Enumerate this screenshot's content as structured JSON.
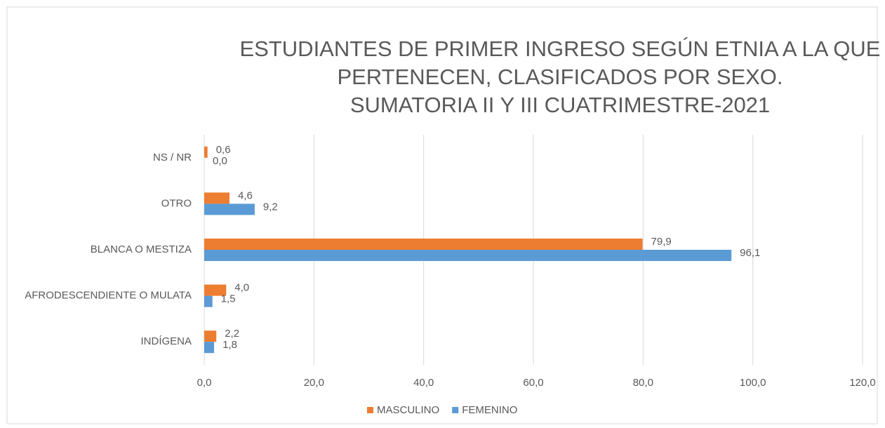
{
  "chart_data": {
    "type": "hbar",
    "title": [
      "ESTUDIANTES DE PRIMER INGRESO SEGÚN ETNIA A LA QUE",
      "PERTENECEN, CLASIFICADOS POR SEXO.",
      "SUMATORIA II Y III CUATRIMESTRE-2021"
    ],
    "categories": [
      "NS / NR",
      "OTRO",
      "BLANCA O MESTIZA",
      "AFRODESCENDIENTE O MULATA",
      "INDÍGENA"
    ],
    "series": [
      {
        "name": "MASCULINO",
        "color": "#ed7d31",
        "values": [
          0.6,
          4.6,
          79.9,
          4.0,
          2.2
        ],
        "value_labels": [
          "0,6",
          "4,6",
          "79,9",
          "4,0",
          "2,2"
        ]
      },
      {
        "name": "FEMENINO",
        "color": "#5b9bd5",
        "values": [
          0.0,
          9.2,
          96.1,
          1.5,
          1.8
        ],
        "value_labels": [
          "0,0",
          "9,2",
          "96,1",
          "1,5",
          "1,8"
        ]
      }
    ],
    "xlim": [
      0,
      120
    ],
    "xticks": [
      {
        "value": 0,
        "label": "0,0"
      },
      {
        "value": 20,
        "label": "20,0"
      },
      {
        "value": 40,
        "label": "40,0"
      },
      {
        "value": 60,
        "label": "60,0"
      },
      {
        "value": 80,
        "label": "80,0"
      },
      {
        "value": 100,
        "label": "100,0"
      },
      {
        "value": 120,
        "label": "120,0"
      }
    ],
    "grid": true,
    "legend": "bottom"
  }
}
